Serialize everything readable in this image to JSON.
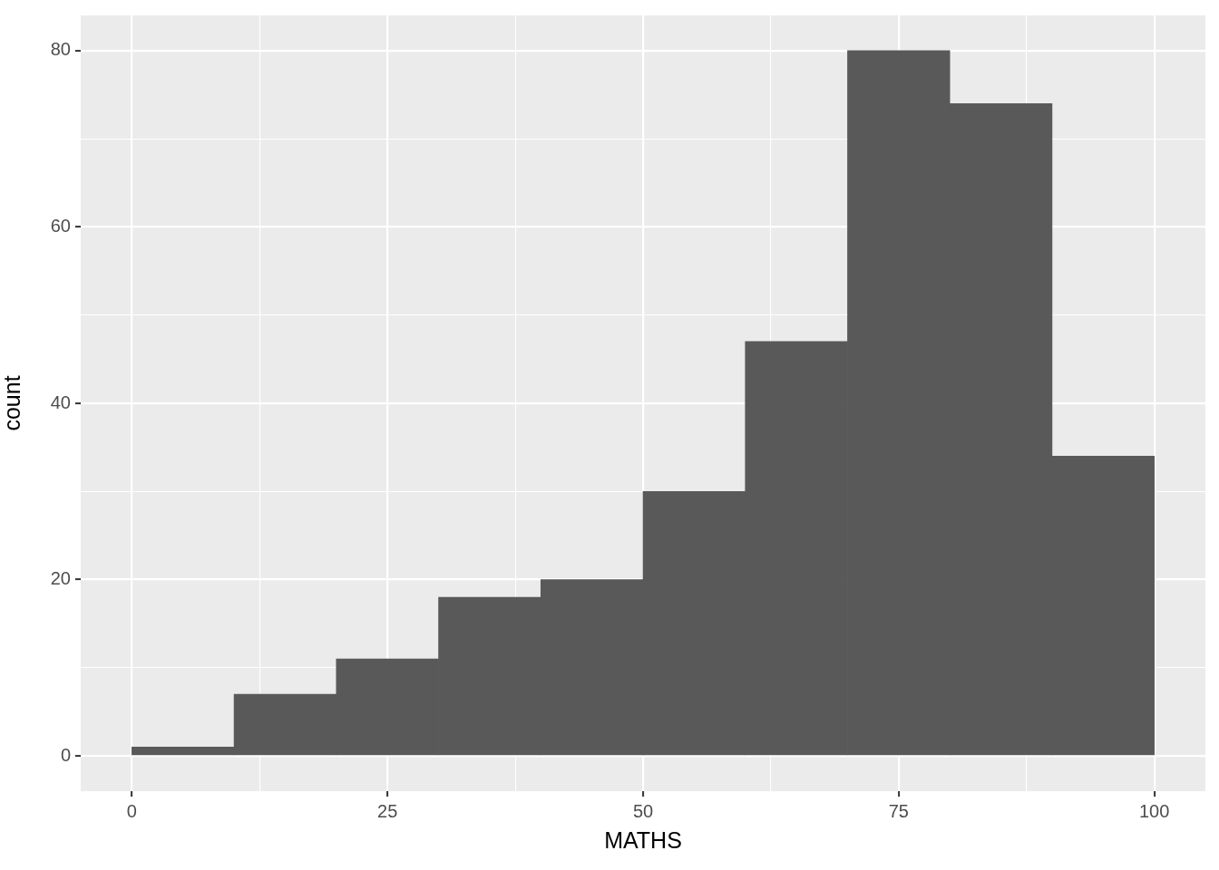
{
  "chart_data": {
    "type": "histogram",
    "xlabel": "MATHS",
    "ylabel": "count",
    "bins": [
      0,
      10,
      20,
      30,
      40,
      50,
      60,
      70,
      80,
      90,
      100
    ],
    "values": [
      1,
      7,
      11,
      18,
      20,
      30,
      47,
      80,
      74,
      34
    ],
    "color": "#595959",
    "xlim": [
      -5,
      105
    ],
    "xticks": [
      0,
      {
        "value": 12.5,
        "label": null
      },
      25,
      {
        "value": 37.5,
        "label": null
      },
      50,
      {
        "value": 62.5,
        "label": null
      },
      75,
      {
        "value": 87.5,
        "label": null
      },
      100
    ],
    "ylim": [
      -4,
      84
    ],
    "yticks": [
      0,
      {
        "value": 10,
        "label": null
      },
      20,
      {
        "value": 30,
        "label": null
      },
      40,
      {
        "value": 50,
        "label": null
      },
      60,
      {
        "value": 70,
        "label": null
      },
      80
    ],
    "grid": true,
    "legend": false
  }
}
